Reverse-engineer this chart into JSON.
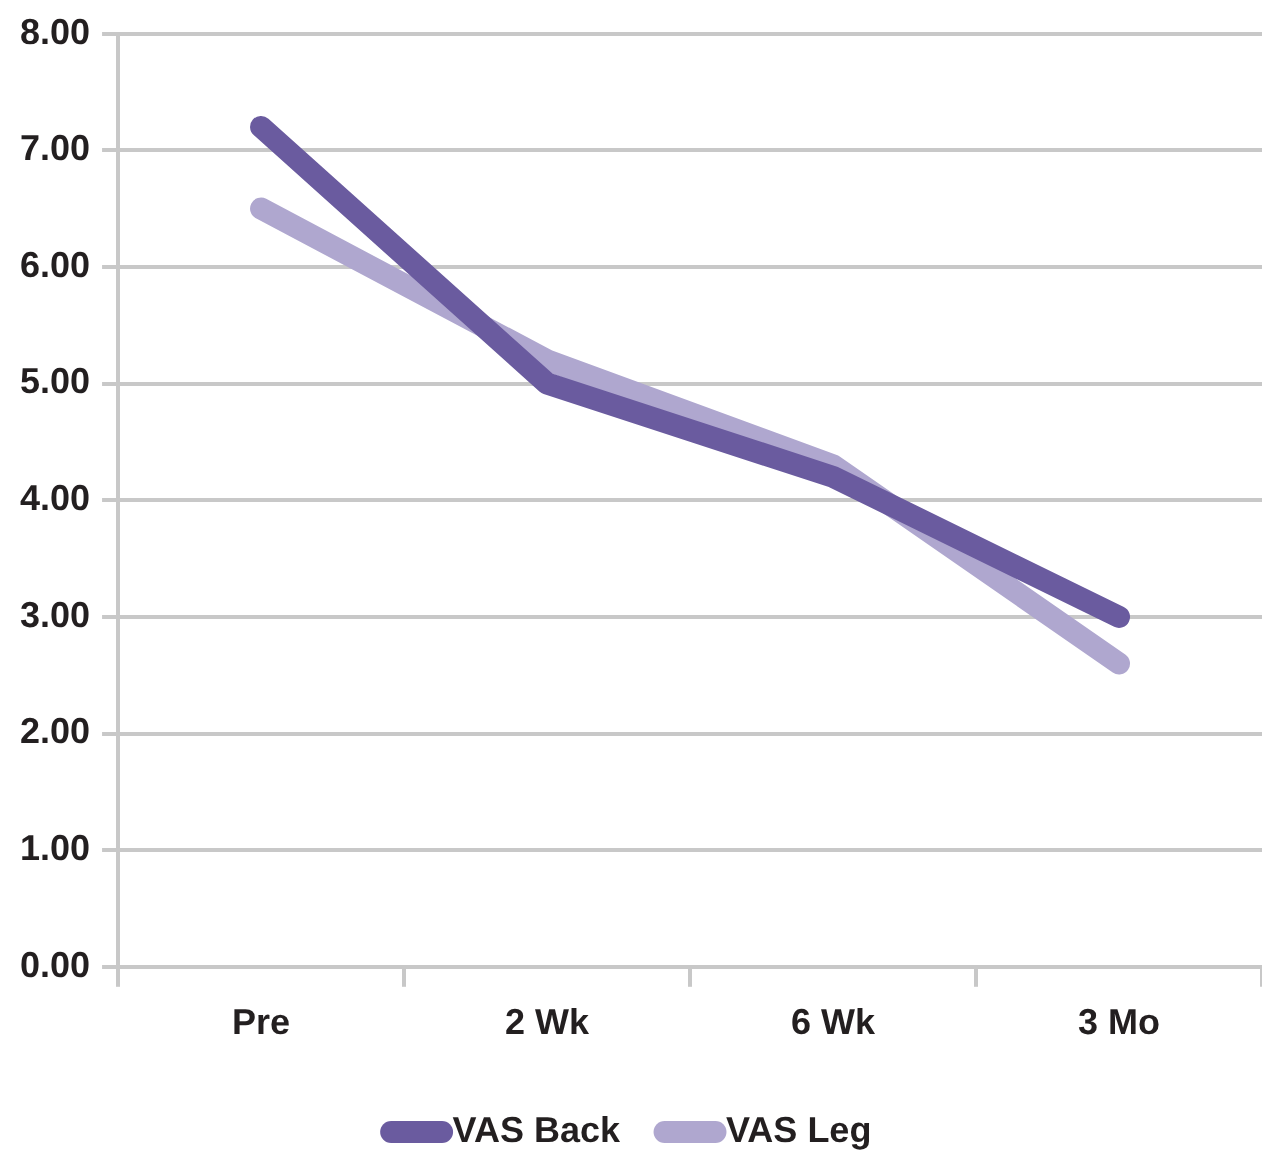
{
  "chart_data": {
    "type": "line",
    "categories": [
      "Pre",
      "2 Wk",
      "6 Wk",
      "3 Mo"
    ],
    "series": [
      {
        "name": "VAS Back",
        "color": "#6a5b9f",
        "values": [
          7.2,
          5.0,
          4.2,
          3.0
        ]
      },
      {
        "name": "VAS Leg",
        "color": "#afa7cf",
        "values": [
          6.5,
          5.2,
          4.3,
          2.6
        ]
      }
    ],
    "ylim": [
      0,
      8
    ],
    "yticks": [
      {
        "value": 0,
        "label": "0.00"
      },
      {
        "value": 1,
        "label": "1.00"
      },
      {
        "value": 2,
        "label": "2.00"
      },
      {
        "value": 3,
        "label": "3.00"
      },
      {
        "value": 4,
        "label": "4.00"
      },
      {
        "value": 5,
        "label": "5.00"
      },
      {
        "value": 6,
        "label": "6.00"
      },
      {
        "value": 7,
        "label": "7.00"
      },
      {
        "value": 8,
        "label": "8.00"
      }
    ],
    "grid": "y",
    "legend": "bottom",
    "marker": "none",
    "line_style": "solid"
  }
}
